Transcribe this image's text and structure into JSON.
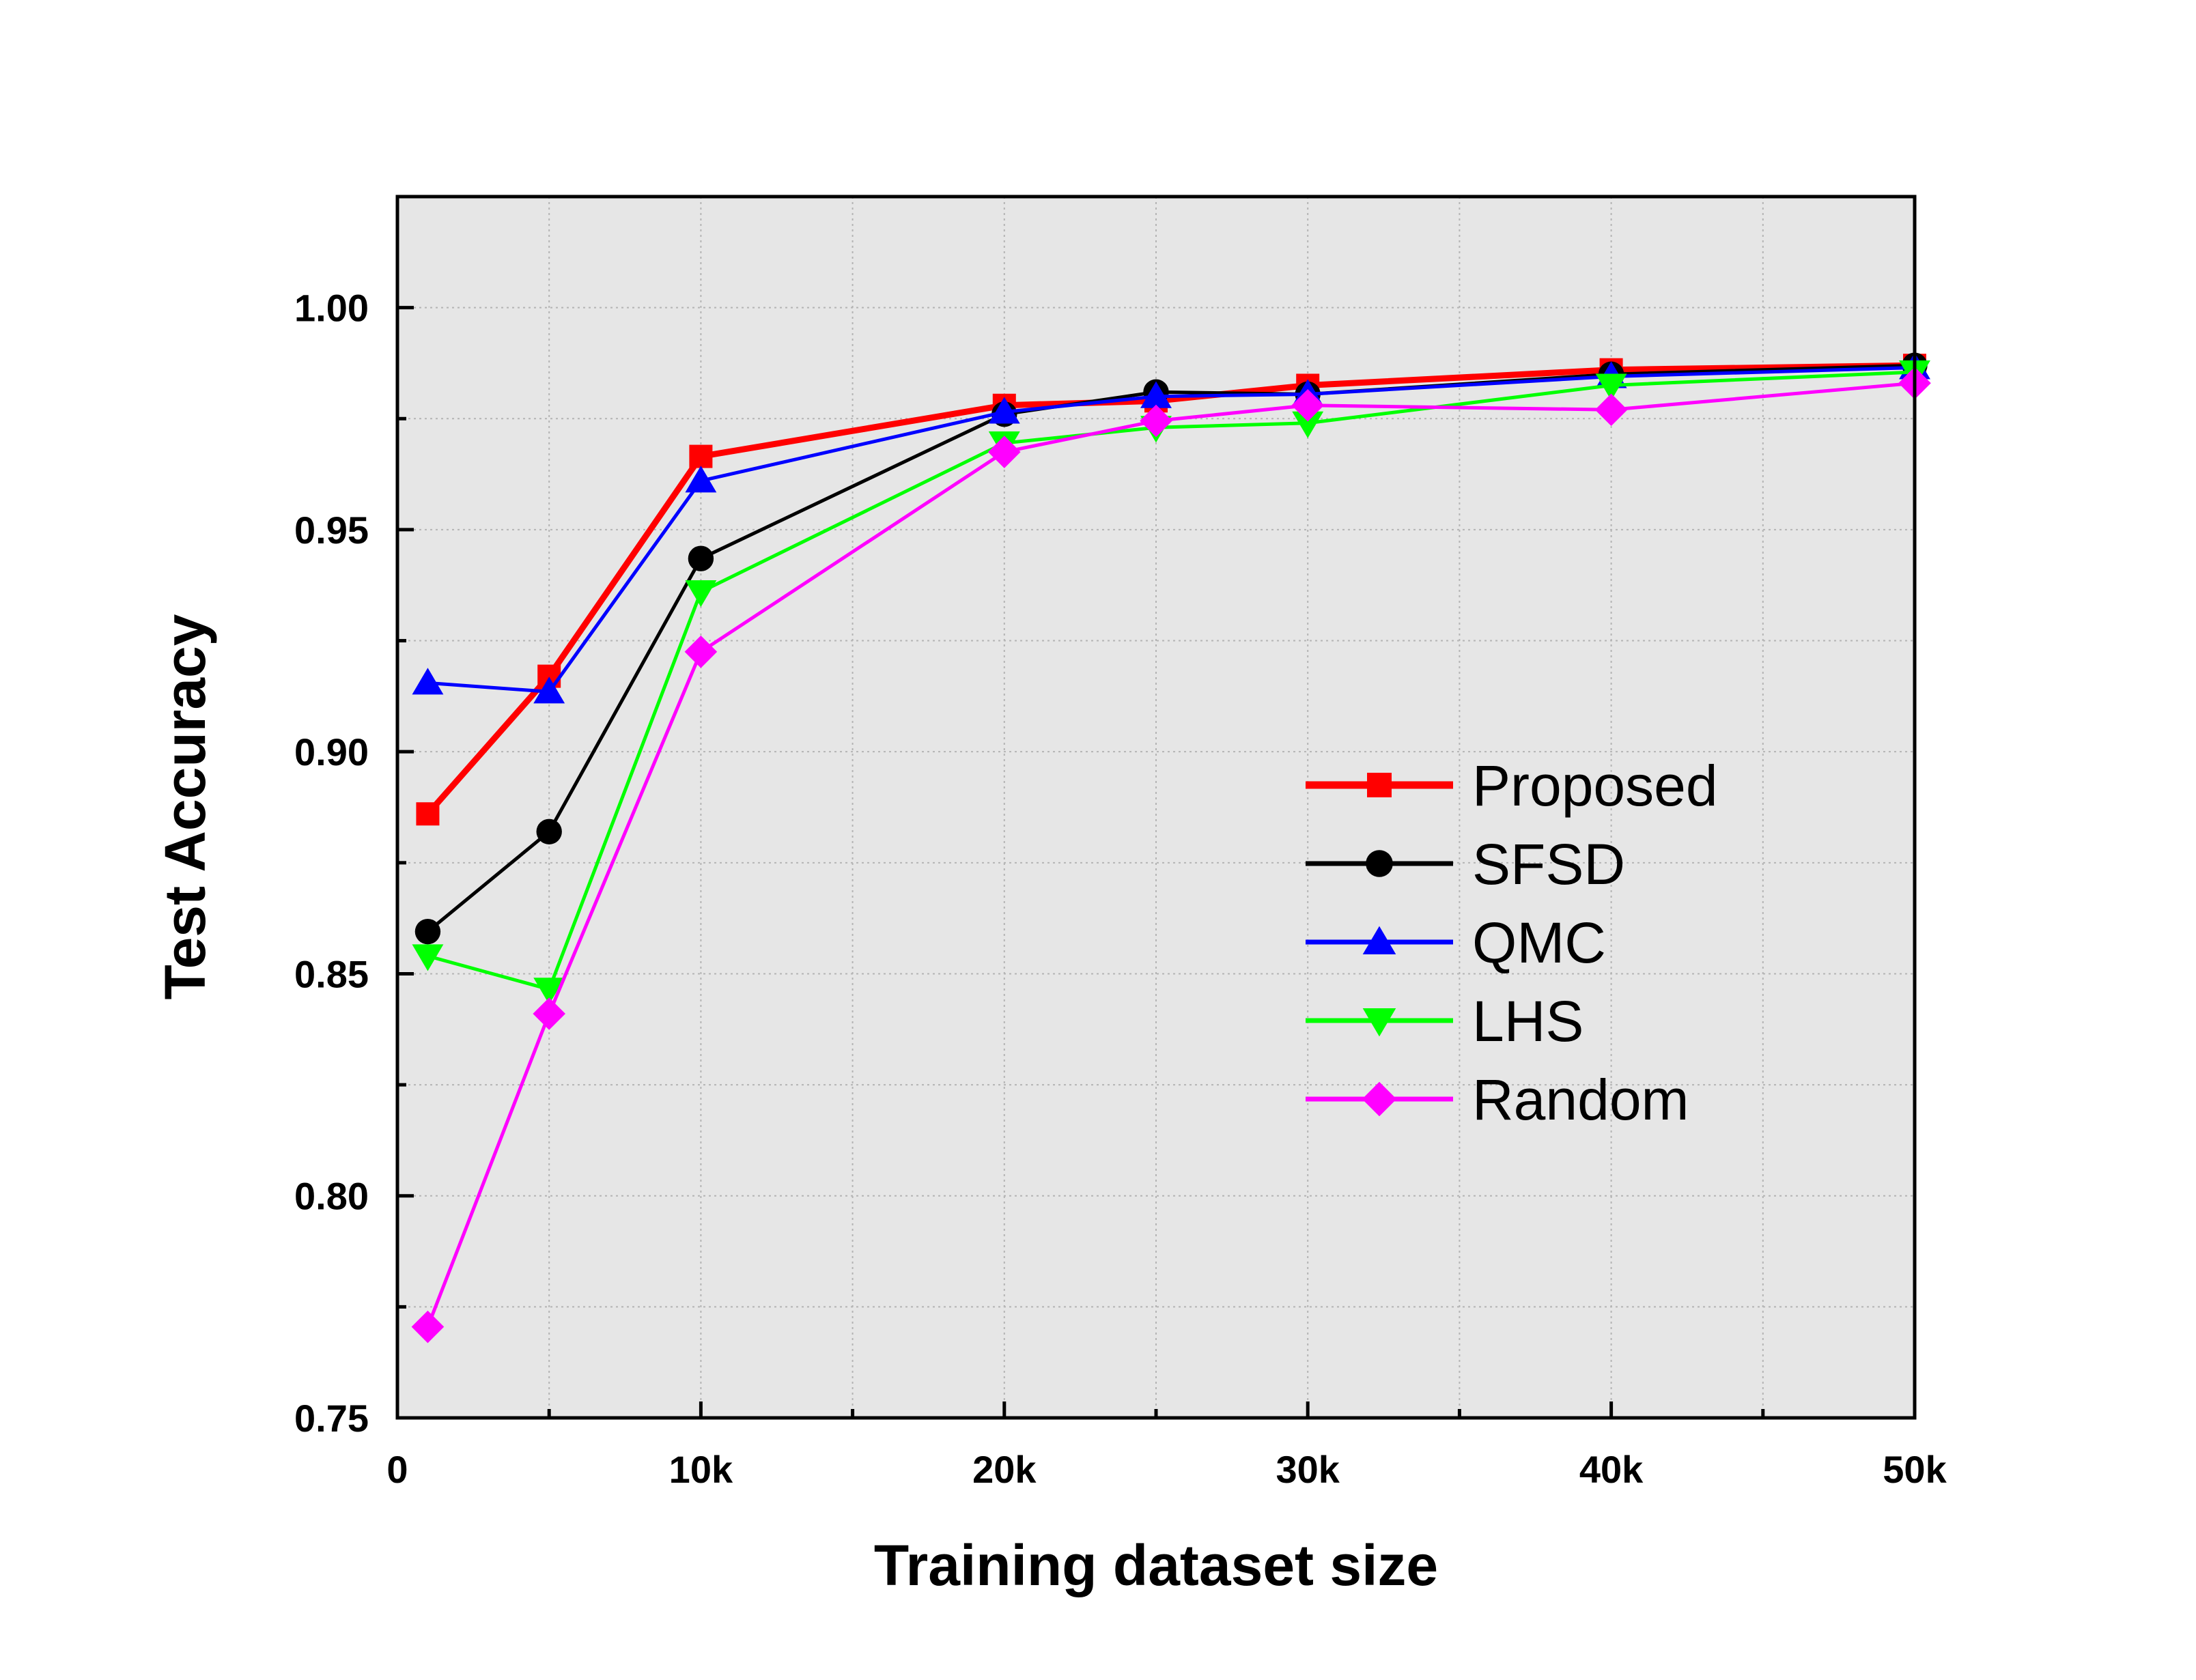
{
  "chart_data": {
    "type": "line",
    "xlabel": "Training dataset size",
    "ylabel": "Test Accuracy",
    "xlim": [
      0,
      50000
    ],
    "ylim": [
      0.75,
      1.025
    ],
    "x_ticks": [
      0,
      10000,
      20000,
      30000,
      40000,
      50000
    ],
    "x_tick_labels": [
      "0",
      "10k",
      "20k",
      "30k",
      "40k",
      "50k"
    ],
    "y_ticks": [
      0.75,
      0.8,
      0.85,
      0.9,
      0.95,
      1.0
    ],
    "y_tick_labels": [
      "0.75",
      "0.80",
      "0.85",
      "0.90",
      "0.95",
      "1.00"
    ],
    "grid": true,
    "legend_position": "center-right",
    "background_color": "#e6e6e6",
    "x": [
      1000,
      5000,
      10000,
      20000,
      25000,
      30000,
      40000,
      50000
    ],
    "series": [
      {
        "name": "Proposed",
        "color": "#ff0000",
        "marker": "square",
        "values": [
          0.886,
          0.917,
          0.9665,
          0.978,
          0.979,
          0.9825,
          0.986,
          0.987
        ]
      },
      {
        "name": "SFSD",
        "color": "#000000",
        "marker": "circle",
        "values": [
          0.8595,
          0.882,
          0.9435,
          0.976,
          0.981,
          0.9805,
          0.985,
          0.987
        ]
      },
      {
        "name": "QMC",
        "color": "#0000ff",
        "marker": "triangle-up",
        "values": [
          0.9155,
          0.9135,
          0.961,
          0.9765,
          0.98,
          0.9805,
          0.9845,
          0.9865
        ]
      },
      {
        "name": "LHS",
        "color": "#00ff00",
        "marker": "triangle-down",
        "values": [
          0.854,
          0.8465,
          0.936,
          0.9695,
          0.973,
          0.974,
          0.9825,
          0.9855
        ]
      },
      {
        "name": "Random",
        "color": "#ff00ff",
        "marker": "diamond",
        "values": [
          0.7705,
          0.841,
          0.9225,
          0.9675,
          0.9745,
          0.978,
          0.977,
          0.983
        ]
      }
    ]
  }
}
